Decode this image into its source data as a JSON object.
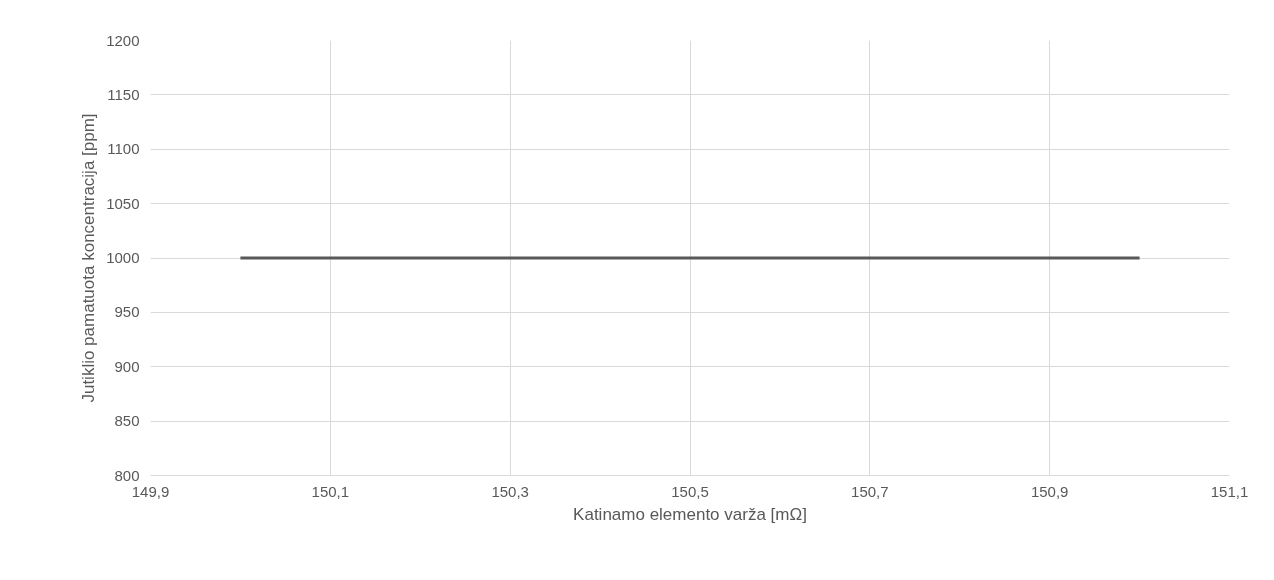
{
  "chart_data": {
    "type": "line",
    "xlabel": "Katinamo elemento varža [mΩ]",
    "ylabel": "Jutiklio pamatuota koncentracija [ppm]",
    "x": [
      150.0,
      151.0
    ],
    "series": [
      {
        "color": "#595959",
        "values": [
          1000,
          1000
        ]
      }
    ],
    "xlim": [
      149.9,
      151.1
    ],
    "xticks": [
      {
        "value": 149.9,
        "label": "149,9"
      },
      {
        "value": 150.1,
        "label": "150,1"
      },
      {
        "value": 150.3,
        "label": "150,3"
      },
      {
        "value": 150.5,
        "label": "150,5"
      },
      {
        "value": 150.7,
        "label": "150,7"
      },
      {
        "value": 150.9,
        "label": "150,9"
      },
      {
        "value": 151.1,
        "label": "151,1"
      }
    ],
    "ylim": [
      800,
      1200
    ],
    "yticks": [
      800,
      850,
      900,
      950,
      1000,
      1050,
      1100,
      1150,
      1200
    ],
    "grid": true,
    "marker": "none",
    "line_style": "solid"
  }
}
